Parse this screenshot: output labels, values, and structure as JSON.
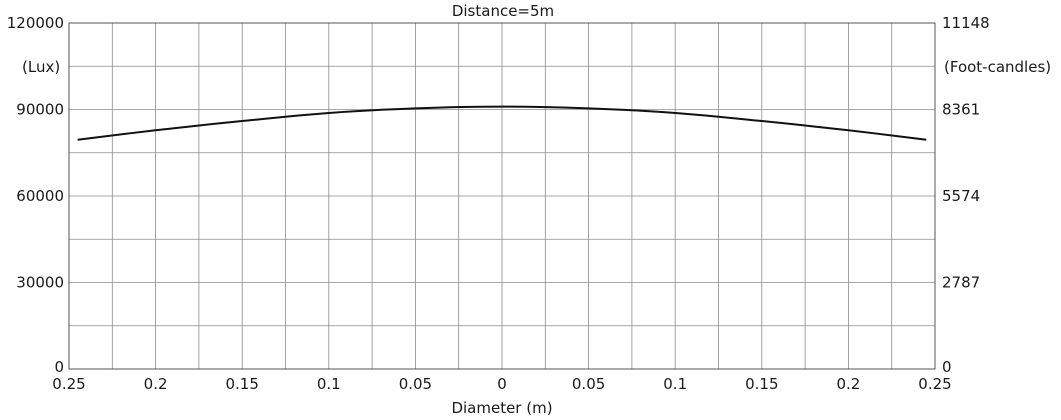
{
  "chart_data": {
    "type": "line",
    "title": "Distance=5m",
    "xlabel": "Diameter (m)",
    "ylabel": "(Lux)",
    "y2label": "(Foot-candles)",
    "xlim": [
      -0.25,
      0.25
    ],
    "ylim": [
      0,
      120000
    ],
    "x_tick_values": [
      -0.25,
      -0.2,
      -0.15,
      -0.1,
      -0.05,
      0,
      0.05,
      0.1,
      0.15,
      0.2,
      0.25
    ],
    "x_tick_labels": [
      "0.25",
      "0.2",
      "0.15",
      "0.1",
      "0.05",
      "0",
      "0.05",
      "0.1",
      "0.15",
      "0.2",
      "0.25"
    ],
    "y_tick_values": [
      0,
      30000,
      60000,
      90000,
      120000
    ],
    "y_tick_labels": [
      "0",
      "30000",
      "60000",
      "90000",
      "120000"
    ],
    "y2_tick_values": [
      0,
      30000,
      60000,
      90000,
      120000
    ],
    "y2_tick_labels": [
      "0",
      "2787",
      "5574",
      "8361",
      "11148"
    ],
    "grid": true,
    "grid_x_step": 0.025,
    "grid_y_step": 15000,
    "series": [
      {
        "color": "#111111",
        "x": [
          -0.245,
          -0.2,
          -0.15,
          -0.1,
          -0.05,
          0,
          0.05,
          0.1,
          0.15,
          0.2,
          0.245
        ],
        "y": [
          79500,
          82800,
          86000,
          88800,
          90400,
          91000,
          90400,
          88800,
          86000,
          82800,
          79500
        ]
      }
    ]
  }
}
